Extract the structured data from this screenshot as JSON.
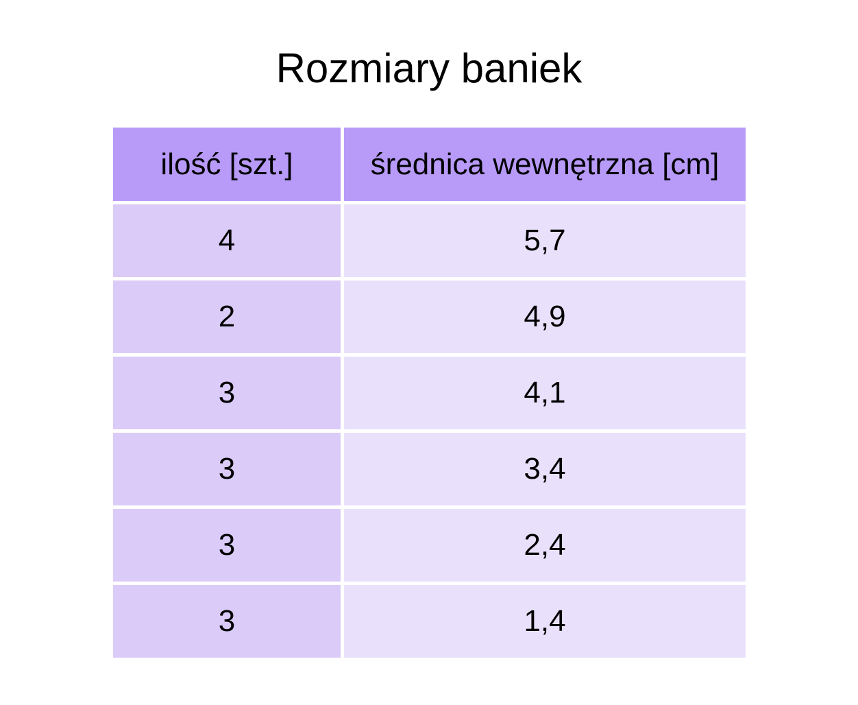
{
  "colors": {
    "header_bg": "#b89af8",
    "col1_bg": "#dbcbf8",
    "col2_bg": "#e9e1fb",
    "text": "#000000",
    "background": "#ffffff"
  },
  "chart_data": {
    "type": "table",
    "title": "Rozmiary baniek",
    "columns": [
      "ilość [szt.]",
      "średnica wewnętrzna [cm]"
    ],
    "rows": [
      [
        "4",
        "5,7"
      ],
      [
        "2",
        "4,9"
      ],
      [
        "3",
        "4,1"
      ],
      [
        "3",
        "3,4"
      ],
      [
        "3",
        "2,4"
      ],
      [
        "3",
        "1,4"
      ]
    ],
    "values_numeric": {
      "ilosc_szt": [
        4,
        2,
        3,
        3,
        3,
        3
      ],
      "srednica_wewnetrzna_cm": [
        5.7,
        4.9,
        4.1,
        3.4,
        2.4,
        1.4
      ]
    },
    "layout": {
      "legend": "none",
      "grid": "white 5px gaps between cells",
      "header_position": "top"
    }
  }
}
